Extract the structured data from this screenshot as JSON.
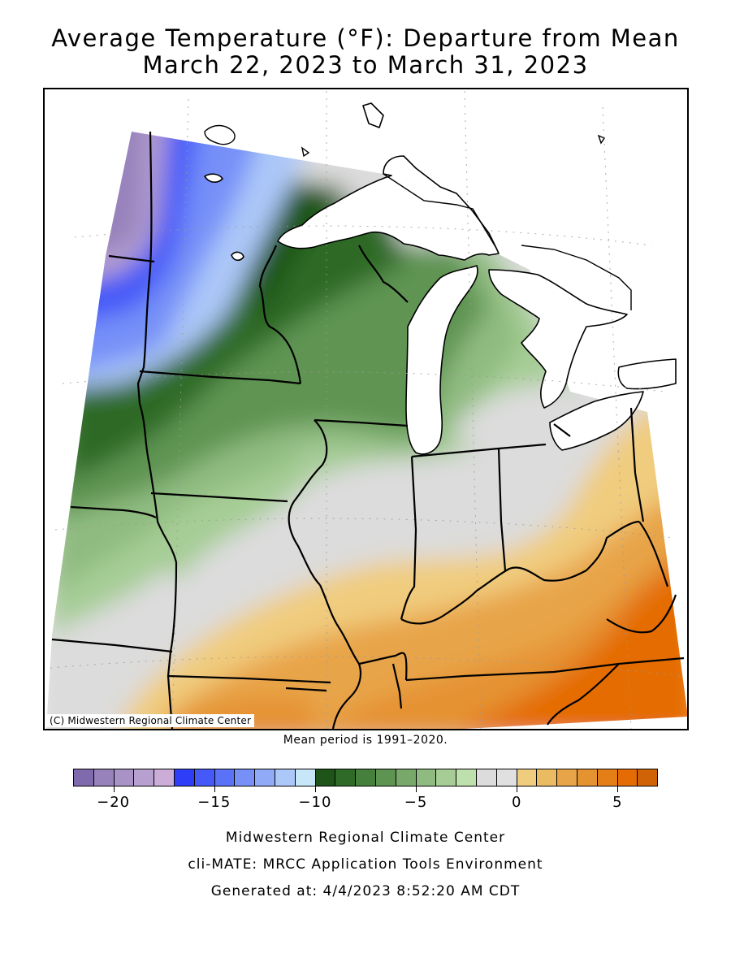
{
  "title_line1": "Average Temperature (°F): Departure from Mean",
  "title_line2": "March 22, 2023 to March 31, 2023",
  "copyright": "(C) Midwestern Regional Climate Center",
  "mean_period": "Mean period is 1991–2020.",
  "legend": {
    "colors": [
      "#7f6aae",
      "#9782bc",
      "#a892c6",
      "#b7a0cf",
      "#cbadd8",
      "#2e3ef8",
      "#4459f8",
      "#5a72f8",
      "#7690f8",
      "#90aaf8",
      "#acc8f8",
      "#c7e6f8",
      "#1e5418",
      "#2f6a28",
      "#46803c",
      "#5e9452",
      "#78a86a",
      "#8fbb80",
      "#a6cd95",
      "#bde0ad",
      "#dcdcdc",
      "#e0e0e0",
      "#f0cc7e",
      "#ebbb62",
      "#e8a448",
      "#e59230",
      "#e47f18",
      "#e56c05",
      "#d06306"
    ],
    "range": [
      -22,
      7
    ],
    "ticks": [
      {
        "value": -20,
        "label": "−20"
      },
      {
        "value": -15,
        "label": "−15"
      },
      {
        "value": -10,
        "label": "−10"
      },
      {
        "value": -5,
        "label": "−5"
      },
      {
        "value": 0,
        "label": "0"
      },
      {
        "value": 5,
        "label": "5"
      }
    ]
  },
  "footer": {
    "line1": "Midwestern Regional Climate Center",
    "line2": "cli-MATE: MRCC Application Tools Environment",
    "line3": "Generated at: 4/4/2023 8:52:20 AM CDT"
  }
}
